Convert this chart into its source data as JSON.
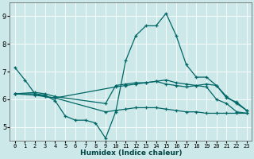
{
  "bg_color": "#cce8e8",
  "grid_color": "#ffffff",
  "line_color": "#006666",
  "xlabel": "Humidex (Indice chaleur)",
  "xlim": [
    -0.5,
    23.5
  ],
  "ylim": [
    4.5,
    9.5
  ],
  "yticks": [
    5,
    6,
    7,
    8,
    9
  ],
  "xticks": [
    0,
    1,
    2,
    3,
    4,
    5,
    6,
    7,
    8,
    9,
    10,
    11,
    12,
    13,
    14,
    15,
    16,
    17,
    18,
    19,
    20,
    21,
    22,
    23
  ],
  "series": [
    {
      "x": [
        0,
        1,
        2,
        3,
        4,
        5,
        6,
        7,
        8,
        9,
        10,
        11,
        12,
        13,
        14,
        15,
        16,
        17,
        18,
        19,
        20,
        21,
        22,
        23
      ],
      "y": [
        7.15,
        6.7,
        6.2,
        6.15,
        5.95,
        5.4,
        5.25,
        5.25,
        5.15,
        4.6,
        5.55,
        7.4,
        8.3,
        8.65,
        8.65,
        9.1,
        8.3,
        7.25,
        6.8,
        6.8,
        6.5,
        6.1,
        5.85,
        5.6
      ]
    },
    {
      "x": [
        0,
        2,
        3,
        4,
        10,
        11,
        12,
        13,
        14,
        15,
        16,
        17,
        18,
        19,
        20,
        21,
        22,
        23
      ],
      "y": [
        6.2,
        6.2,
        6.1,
        6.05,
        6.45,
        6.5,
        6.55,
        6.6,
        6.65,
        6.7,
        6.6,
        6.55,
        6.5,
        6.55,
        6.5,
        6.05,
        5.9,
        5.6
      ]
    },
    {
      "x": [
        0,
        2,
        3,
        4,
        9,
        10,
        11,
        12,
        13,
        14,
        15,
        16,
        17,
        18,
        19,
        20,
        21,
        22,
        23
      ],
      "y": [
        6.2,
        6.15,
        6.1,
        6.05,
        5.55,
        5.6,
        5.65,
        5.7,
        5.7,
        5.7,
        5.65,
        5.6,
        5.55,
        5.55,
        5.5,
        5.5,
        5.5,
        5.5,
        5.5
      ]
    },
    {
      "x": [
        0,
        2,
        3,
        4,
        9,
        10,
        11,
        12,
        13,
        14,
        15,
        16,
        17,
        18,
        19,
        20,
        21,
        22,
        23
      ],
      "y": [
        6.2,
        6.25,
        6.2,
        6.1,
        5.85,
        6.5,
        6.55,
        6.6,
        6.6,
        6.65,
        6.55,
        6.5,
        6.45,
        6.5,
        6.45,
        6.0,
        5.85,
        5.55,
        5.5
      ]
    }
  ]
}
